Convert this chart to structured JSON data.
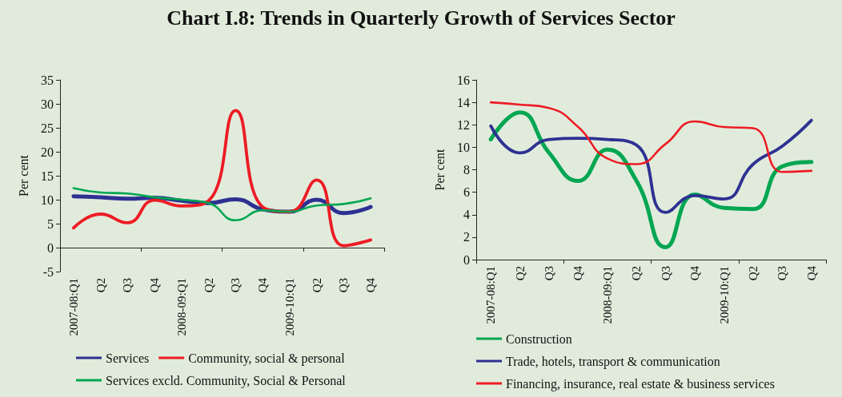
{
  "chart_data": [
    {
      "type": "line",
      "title": "Chart I.8: Trends in Quarterly Growth of Services Sector",
      "ylabel": "Per cent",
      "categories": [
        "2007-08:Q1",
        "Q2",
        "Q3",
        "Q4",
        "2008-09:Q1",
        "Q2",
        "Q3",
        "Q4",
        "2009-10:Q1",
        "Q2",
        "Q3",
        "Q4"
      ],
      "series": [
        {
          "name": "Services",
          "color": "#2e3192",
          "values": [
            10.7,
            10.5,
            10.2,
            10.4,
            9.8,
            9.3,
            10.1,
            8.0,
            7.5,
            10.0,
            7.2,
            8.5
          ]
        },
        {
          "name": "Community, social & personal",
          "color": "#ed1c24",
          "values": [
            4.1,
            7.0,
            5.2,
            9.9,
            8.7,
            9.8,
            28.6,
            8.5,
            7.5,
            14.1,
            0.4,
            1.6
          ]
        },
        {
          "name": "Services excld. Community, Social & Personal",
          "color": "#00a651",
          "values": [
            12.4,
            11.5,
            11.3,
            10.5,
            10.0,
            9.3,
            5.7,
            7.8,
            7.5,
            8.8,
            9.1,
            10.3
          ]
        }
      ],
      "ylim": [
        -5,
        35
      ],
      "yticks": [
        -5,
        0,
        5,
        10,
        15,
        20,
        25,
        30,
        35
      ],
      "grid": false,
      "legend": "bottom",
      "marker": "none",
      "line_style": "solid"
    },
    {
      "type": "line",
      "ylabel": "Per cent",
      "categories": [
        "2007-08:Q1",
        "Q2",
        "Q3",
        "Q4",
        "2008-09:Q1",
        "Q2",
        "Q3",
        "Q4",
        "2009-10:Q1",
        "Q2",
        "Q3",
        "Q4"
      ],
      "series": [
        {
          "name": "Construction",
          "color": "#00a651",
          "values": [
            10.7,
            13.1,
            9.5,
            7.0,
            9.8,
            7.0,
            1.1,
            5.8,
            4.6,
            4.5,
            8.3,
            8.7
          ]
        },
        {
          "name": "Trade, hotels, transport & communication",
          "color": "#2e3192",
          "values": [
            11.9,
            9.5,
            10.7,
            10.8,
            10.7,
            10.2,
            4.2,
            5.7,
            5.4,
            8.5,
            10.1,
            12.4
          ]
        },
        {
          "name": "Financing, insurance, real estate & business services",
          "color": "#ed1c24",
          "values": [
            14.0,
            13.8,
            13.5,
            11.8,
            9.0,
            8.5,
            10.3,
            12.3,
            11.8,
            11.7,
            7.8,
            7.9
          ]
        }
      ],
      "ylim": [
        0,
        16
      ],
      "yticks": [
        0,
        2,
        4,
        6,
        8,
        10,
        12,
        14,
        16
      ],
      "grid": false,
      "legend": "bottom",
      "marker": "none",
      "line_style": "solid"
    }
  ]
}
